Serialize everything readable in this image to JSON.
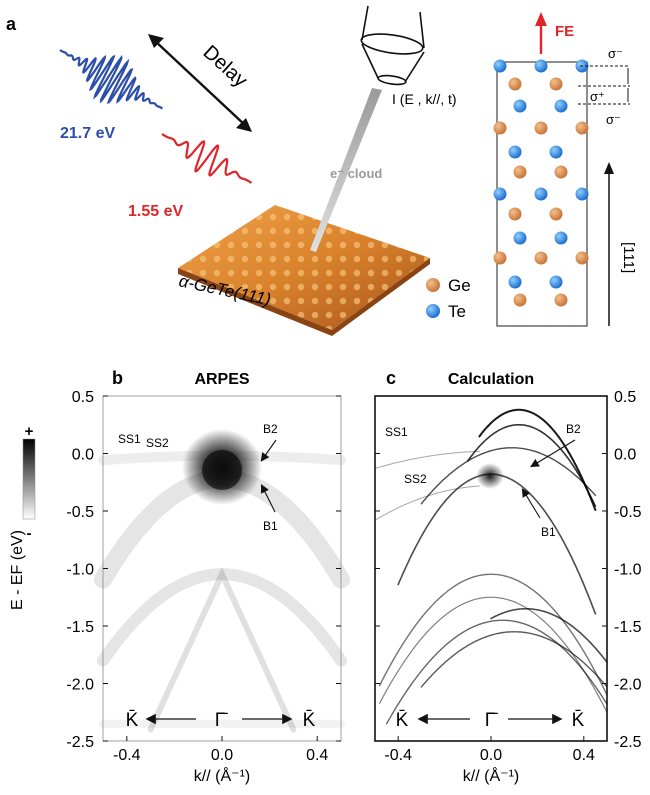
{
  "panel_labels": {
    "a": "a",
    "b": "b",
    "c": "c"
  },
  "panel_a": {
    "delay_label": "Delay",
    "probe_energy": "21.7 eV",
    "pump_energy": "1.55 eV",
    "detector_label": "I (E , k//, t)",
    "electron_cloud_label": "e⁻ cloud",
    "sample_label": "α-GeTe(111)",
    "fe_label": "FE",
    "sigma_minus_top": "σ⁻",
    "sigma_plus": "σ⁺",
    "sigma_minus_bottom": "σ⁻",
    "direction_label": "[111]",
    "legend": [
      {
        "label": "Ge",
        "color": "#c8763a"
      },
      {
        "label": "Te",
        "color": "#1f6fd0"
      }
    ],
    "colors": {
      "probe_pulse": "#2b4ea8",
      "pump_pulse": "#e0252a",
      "fe_arrow": "#e0252a"
    }
  },
  "panel_b": {
    "title": "ARPES",
    "state_labels": {
      "ss1": "SS1",
      "ss2": "SS2",
      "b1": "B1",
      "b2": "B2"
    },
    "colorbar_plus": "+",
    "colorbar_minus": "-",
    "k_labels": {
      "left": "K̄",
      "center": "Γ̄",
      "right": "K̄"
    }
  },
  "panel_c": {
    "title": "Calculation",
    "state_labels": {
      "ss1": "SS1",
      "ss2": "SS2",
      "b1": "B1",
      "b2": "B2"
    },
    "k_labels": {
      "left": "K̄",
      "center": "Γ̄",
      "right": "K̄"
    }
  },
  "axes": {
    "ylabel": "E - EF (eV)",
    "xlabel": "k// (Å⁻¹)",
    "yticks": [
      "0.5",
      "0.0",
      "-0.5",
      "-1.0",
      "-1.5",
      "-2.0",
      "-2.5"
    ],
    "xticks": [
      "-0.4",
      "0.0",
      "0.4"
    ],
    "ylim": [
      -2.5,
      0.5
    ],
    "xlim": [
      -0.5,
      0.5
    ]
  }
}
